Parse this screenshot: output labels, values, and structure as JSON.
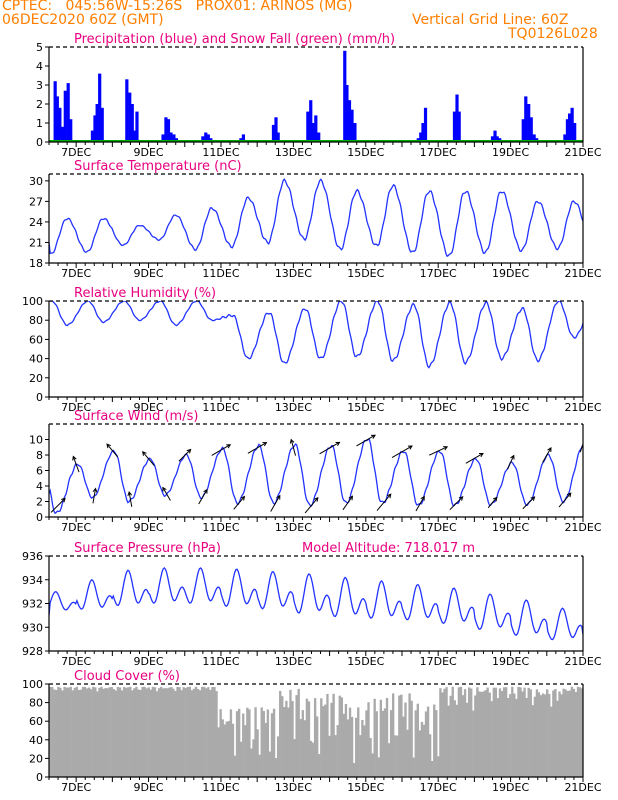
{
  "header": {
    "line1": "CPTEC:   045:56W-15:26S   PROX01: ARINOS (MG)",
    "line2": "06DEC2020 60Z (GMT)",
    "vertical_grid": "Vertical Grid Line: 60Z",
    "code": "TQ0126L028"
  },
  "colors": {
    "precip": "#0000ff",
    "snow": "#00aa00",
    "line": "#2233ff",
    "title": "#e8007f",
    "header": "#ff7f00",
    "cloud": "#aaaaaa",
    "arrow": "#000000"
  },
  "date_ticks": [
    {
      "day": 7,
      "label": "7DEC"
    },
    {
      "day": 9,
      "label": "9DEC"
    },
    {
      "day": 11,
      "label": "11DEC"
    },
    {
      "day": 13,
      "label": "13DEC"
    },
    {
      "day": 15,
      "label": "15DEC"
    },
    {
      "day": 17,
      "label": "17DEC"
    },
    {
      "day": 19,
      "label": "19DEC"
    },
    {
      "day": 21,
      "label": "21DEC"
    }
  ],
  "x_range": [
    6.25,
    21.0
  ],
  "chart_data": [
    {
      "type": "bar",
      "title": "Precipitation (blue) and Snow Fall (green) (mm/h)",
      "ylim": [
        0,
        5
      ],
      "yticks": [
        0,
        1,
        2,
        3,
        4,
        5
      ],
      "series": [
        {
          "name": "Precipitation",
          "color": "#0000ff",
          "x": [
            6.42,
            6.48,
            6.55,
            6.62,
            6.7,
            6.78,
            6.85,
            7.45,
            7.52,
            7.58,
            7.65,
            7.72,
            8.4,
            8.48,
            8.55,
            8.62,
            8.68,
            9.4,
            9.48,
            9.55,
            9.62,
            9.7,
            9.77,
            10.5,
            10.58,
            10.65,
            10.72,
            11.55,
            11.62,
            12.45,
            12.52,
            12.58,
            13.4,
            13.48,
            13.55,
            13.62,
            13.7,
            14.42,
            14.48,
            14.55,
            14.62,
            14.7,
            16.45,
            16.52,
            16.58,
            16.65,
            17.45,
            17.52,
            17.58,
            18.5,
            18.57,
            18.63,
            18.7,
            19.35,
            19.42,
            19.5,
            19.57,
            19.65,
            19.72,
            20.5,
            20.57,
            20.63,
            20.7,
            20.77
          ],
          "values": [
            3.2,
            2.4,
            1.8,
            0.8,
            2.7,
            3.1,
            1.2,
            0.6,
            1.4,
            2.0,
            3.6,
            1.8,
            3.3,
            2.6,
            2.0,
            0.6,
            1.6,
            0.4,
            1.3,
            1.2,
            0.5,
            0.4,
            0.2,
            0.3,
            0.5,
            0.4,
            0.2,
            0.2,
            0.4,
            0.9,
            1.3,
            0.5,
            1.6,
            2.2,
            1.0,
            1.4,
            0.5,
            4.8,
            3.0,
            2.2,
            1.7,
            1.0,
            0.2,
            0.5,
            1.0,
            1.8,
            1.6,
            2.5,
            1.6,
            0.3,
            0.6,
            0.3,
            0.2,
            1.2,
            2.4,
            2.0,
            1.3,
            0.4,
            0.2,
            0.4,
            1.2,
            1.5,
            1.8,
            1.0
          ]
        },
        {
          "name": "Snow Fall",
          "color": "#00aa00",
          "constant": 0
        }
      ]
    },
    {
      "type": "line",
      "title": "Surface Temperature (nC)",
      "ylim": [
        18,
        31
      ],
      "yticks": [
        18,
        21,
        24,
        27,
        30
      ],
      "series": [
        {
          "color": "#2233ff",
          "kind": "diurnal",
          "daily_min": [
            19.3,
            19.6,
            20.6,
            21.4,
            20.0,
            20.4,
            21.0,
            21.5,
            20.0,
            20.5,
            19.5,
            19.0,
            19.5,
            19.8,
            20.1,
            20.3,
            20.6
          ],
          "daily_max": [
            24.5,
            24.5,
            23.5,
            25.0,
            26.0,
            27.5,
            30.0,
            30.0,
            28.5,
            29.3,
            28.5,
            28.5,
            28.5,
            27.0,
            27.0,
            27.5,
            27.5
          ],
          "hour_min": 0.3,
          "hour_max": 0.75,
          "start": 6.25,
          "end": 21.0,
          "start_value": 21.0,
          "end_value": 22.7
        }
      ]
    },
    {
      "type": "line",
      "title": "Relative Humidity (%)",
      "ylim": [
        0,
        100
      ],
      "yticks": [
        0,
        20,
        40,
        60,
        80,
        100
      ],
      "series": [
        {
          "color": "#2233ff",
          "kind": "diurnal",
          "daily_min": [
            75,
            78,
            80,
            75,
            80,
            40,
            35,
            40,
            42,
            38,
            32,
            36,
            40,
            38,
            62,
            68,
            60
          ],
          "daily_max": [
            100,
            100,
            100,
            100,
            100,
            85,
            88,
            92,
            100,
            100,
            96,
            98,
            98,
            92,
            100,
            100,
            100
          ],
          "hour_min": 0.75,
          "hour_max": 0.33,
          "start": 6.25,
          "end": 21.0,
          "start_value": 100,
          "end_value": 72
        }
      ]
    },
    {
      "type": "line",
      "title": "Surface Wind (m/s)",
      "ylim": [
        0,
        12
      ],
      "yticks": [
        0,
        2,
        4,
        6,
        8,
        10
      ],
      "series": [
        {
          "color": "#2233ff",
          "kind": "diurnal",
          "daily_min": [
            0.5,
            2.5,
            2.0,
            2.8,
            2.5,
            1.8,
            1.8,
            1.5,
            1.8,
            1.8,
            1.5,
            1.5,
            1.6,
            1.6,
            2.0,
            2.0,
            2.5
          ],
          "daily_max": [
            8.0,
            6.8,
            8.5,
            7.5,
            8.0,
            8.8,
            9.2,
            9.3,
            9.2,
            10.1,
            8.5,
            8.5,
            7.5,
            7.0,
            8.0,
            9.5,
            9.5
          ],
          "hour_min": 0.45,
          "hour_max": 0.05,
          "start": 6.25,
          "end": 21.0,
          "start_value": 3.0,
          "end_value": 2.2
        }
      ],
      "wind_arrows": {
        "x": [
          6.5,
          7.0,
          7.5,
          8.0,
          8.5,
          9.0,
          9.5,
          10.0,
          10.5,
          11.0,
          11.5,
          12.0,
          12.5,
          13.0,
          13.5,
          14.0,
          14.5,
          15.0,
          15.5,
          16.0,
          16.5,
          17.0,
          17.5,
          18.0,
          18.5,
          19.0,
          19.5,
          20.0,
          20.5,
          21.0
        ],
        "direction_deg": [
          45,
          340,
          10,
          320,
          350,
          320,
          330,
          45,
          30,
          60,
          40,
          60,
          30,
          345,
          40,
          60,
          35,
          60,
          40,
          60,
          30,
          65,
          45,
          60,
          40,
          25,
          45,
          30,
          40,
          20
        ],
        "speed": [
          4.0,
          3.0,
          2.5,
          3.0,
          2.5,
          3.5,
          2.5,
          3.0,
          3.0,
          4.5,
          3.0,
          4.5,
          3.5,
          3.0,
          4.0,
          5.0,
          3.0,
          4.5,
          4.5,
          5.0,
          3.0,
          4.0,
          3.5,
          4.0,
          2.0,
          2.5,
          3.0,
          3.0,
          3.5,
          3.0
        ]
      }
    },
    {
      "type": "line",
      "title": "Surface Pressure (hPa)",
      "annotation": "Model Altitude: 718.017 m",
      "ylim": [
        928,
        936
      ],
      "yticks": [
        928,
        930,
        932,
        934,
        936
      ],
      "series": [
        {
          "color": "#2233ff",
          "kind": "semidiurnal",
          "daily_mean": [
            932.0,
            932.5,
            933.0,
            933.2,
            933.2,
            933.0,
            932.8,
            932.5,
            932.2,
            932.0,
            931.8,
            931.5,
            931.0,
            930.5,
            930.0,
            929.5,
            929.2
          ],
          "amplitude": [
            1.0,
            1.5,
            1.8,
            1.8,
            1.8,
            1.9,
            1.9,
            2.0,
            2.0,
            1.9,
            1.8,
            1.8,
            1.8,
            1.8,
            1.6,
            1.4,
            1.4
          ],
          "start": 6.25,
          "end": 21.0,
          "start_value": 931.0,
          "end_value": 928.5
        }
      ]
    },
    {
      "type": "bar",
      "title": "Cloud Cover (%)",
      "ylim": [
        0,
        100
      ],
      "yticks": [
        0,
        20,
        40,
        60,
        80,
        100
      ],
      "series": [
        {
          "color": "#aaaaaa",
          "kind": "segments",
          "segments": [
            {
              "from": 6.25,
              "to": 10.9,
              "base": 97,
              "dip": 92
            },
            {
              "from": 10.9,
              "to": 11.6,
              "base": 75,
              "dip": 20
            },
            {
              "from": 11.6,
              "to": 12.6,
              "base": 75,
              "dip": 10
            },
            {
              "from": 12.6,
              "to": 13.2,
              "base": 95,
              "dip": 40
            },
            {
              "from": 13.2,
              "to": 13.8,
              "base": 85,
              "dip": 10
            },
            {
              "from": 13.8,
              "to": 14.5,
              "base": 90,
              "dip": 30
            },
            {
              "from": 14.5,
              "to": 15.0,
              "base": 75,
              "dip": 15
            },
            {
              "from": 15.0,
              "to": 15.6,
              "base": 85,
              "dip": 5
            },
            {
              "from": 15.6,
              "to": 16.4,
              "base": 90,
              "dip": 20
            },
            {
              "from": 16.4,
              "to": 17.0,
              "base": 80,
              "dip": 5
            },
            {
              "from": 17.0,
              "to": 18.0,
              "base": 97,
              "dip": 70
            },
            {
              "from": 18.0,
              "to": 19.5,
              "base": 97,
              "dip": 80
            },
            {
              "from": 19.5,
              "to": 20.5,
              "base": 95,
              "dip": 75
            },
            {
              "from": 20.5,
              "to": 21.0,
              "base": 97,
              "dip": 90
            }
          ]
        }
      ]
    }
  ]
}
